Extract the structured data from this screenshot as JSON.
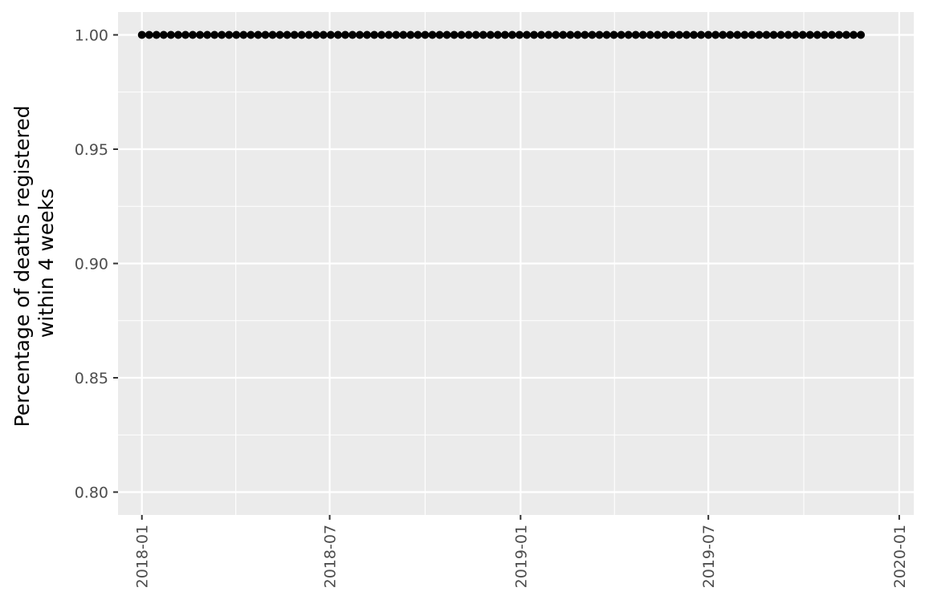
{
  "chart_data": {
    "type": "scatter",
    "ylabel_lines": [
      "Percentage of deaths registered",
      "within 4 weeks"
    ],
    "xlabel": "",
    "x_start": "2018-01-01",
    "x_end": "2019-12-01",
    "x_step_days": 7,
    "y_constant": 1.0,
    "xlim": [
      "2017-12-09",
      "2020-01-15"
    ],
    "ylim": [
      0.79,
      1.01
    ],
    "x_ticks": [
      "2018-01",
      "2018-07",
      "2019-01",
      "2019-07",
      "2020-01"
    ],
    "y_ticks": [
      "0.80",
      "0.85",
      "0.90",
      "0.95",
      "1.00"
    ],
    "grid": true,
    "colors": {
      "panel": "#ebebeb",
      "gridline": "#ffffff",
      "point": "#000000",
      "tick_text": "#4d4d4d",
      "tick_mark": "#333333"
    }
  }
}
